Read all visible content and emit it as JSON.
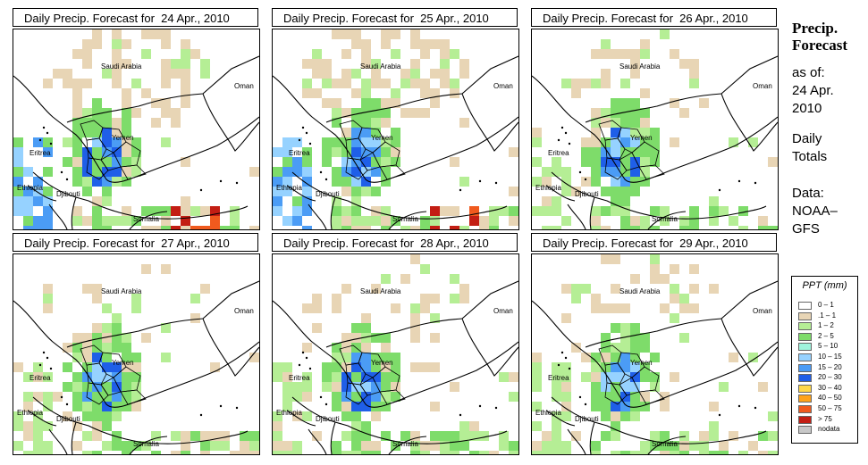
{
  "panels": [
    {
      "title": "Daily Precip. Forecast for  24 Apr., 2010"
    },
    {
      "title": "Daily Precip. Forecast for  25 Apr., 2010"
    },
    {
      "title": "Daily Precip. Forecast for  26 Apr., 2010"
    },
    {
      "title": "Daily Precip. Forecast for  27 Apr., 2010"
    },
    {
      "title": "Daily Precip. Forecast for  28 Apr., 2010"
    },
    {
      "title": "Daily Precip. Forecast for  29 Apr., 2010"
    }
  ],
  "map_labels": {
    "saudi_arabia": "Saudi Arabia",
    "oman": "Oman",
    "yemen": "Yemen",
    "eritrea": "Eritrea",
    "ethiopia": "Ethiopia",
    "djibouti": "Djibouti",
    "somalia": "Somalia"
  },
  "sidebar": {
    "title_line1": "Precip.",
    "title_line2": "Forecast",
    "asof_line1": "as of:",
    "asof_line2": "24 Apr.",
    "asof_line3": "2010",
    "totals_line1": "Daily",
    "totals_line2": "Totals",
    "data_line1": "Data:",
    "data_line2": "NOAA–",
    "data_line3": "GFS"
  },
  "legend": {
    "title": "PPT (mm)",
    "items": [
      {
        "label": "0 – 1",
        "color": "#ffffff"
      },
      {
        "label": ".1 – 1",
        "color": "#e8d5b5"
      },
      {
        "label": "1 – 2",
        "color": "#b5ee95"
      },
      {
        "label": "2 – 5",
        "color": "#7edc6a"
      },
      {
        "label": "5 – 10",
        "color": "#9ff3dc"
      },
      {
        "label": "10 – 15",
        "color": "#96d2ff"
      },
      {
        "label": "15 – 20",
        "color": "#4b9cf5"
      },
      {
        "label": "20 – 30",
        "color": "#1f5fe8"
      },
      {
        "label": "30 – 40",
        "color": "#ffd84a"
      },
      {
        "label": "40 – 50",
        "color": "#ffa31a"
      },
      {
        "label": "50 – 75",
        "color": "#f05a1e"
      },
      {
        "label": "> 75",
        "color": "#c31e14"
      },
      {
        "label": "nodata",
        "color": "#c8c8c8"
      }
    ]
  }
}
